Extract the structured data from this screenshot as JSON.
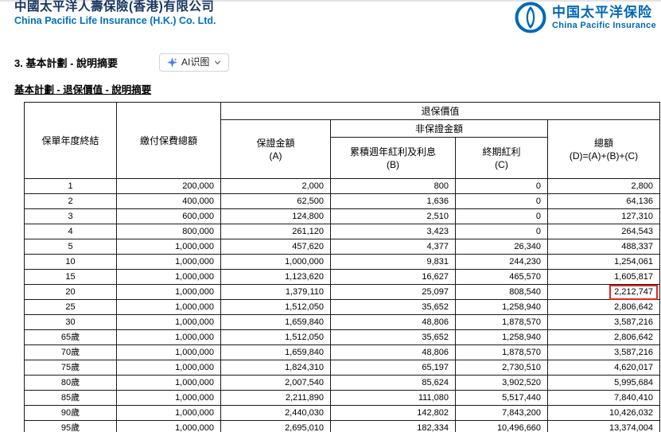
{
  "header": {
    "company_name_zh": "中國太平洋人壽保險(香港)有限公司",
    "company_name_en": "China Pacific Life Insurance (H.K.) Co. Ltd.",
    "logo_text_zh": "中国太平洋保险",
    "logo_text_en": "China Pacific Insurance",
    "brand_blue": "#0068b7",
    "brand_navy": "#16355f"
  },
  "section": {
    "title": "3. 基本計劃 - 說明摘要",
    "subtitle": "基本計劃 - 退保價值 - 說明摘要",
    "ai_button_label": "AI识图"
  },
  "table": {
    "headers": {
      "policy_year": "保單年度終結",
      "total_premium": "繳付保費總額",
      "surrender_value": "退保價值",
      "guaranteed": "保證金額\n(A)",
      "non_guaranteed": "非保證金額",
      "accumulated_dividend": "累積週年紅利及利息\n(B)",
      "terminal_dividend": "終期紅利\n(C)",
      "total": "總額\n(D)=(A)+(B)+(C)"
    },
    "rows": [
      [
        "1",
        "200,000",
        "2,000",
        "800",
        "0",
        "2,800"
      ],
      [
        "2",
        "400,000",
        "62,500",
        "1,636",
        "0",
        "64,136"
      ],
      [
        "3",
        "600,000",
        "124,800",
        "2,510",
        "0",
        "127,310"
      ],
      [
        "4",
        "800,000",
        "261,120",
        "3,423",
        "0",
        "264,543"
      ],
      [
        "5",
        "1,000,000",
        "457,620",
        "4,377",
        "26,340",
        "488,337"
      ],
      [
        "10",
        "1,000,000",
        "1,000,000",
        "9,831",
        "244,230",
        "1,254,061"
      ],
      [
        "15",
        "1,000,000",
        "1,123,620",
        "16,627",
        "465,570",
        "1,605,817"
      ],
      [
        "20",
        "1,000,000",
        "1,379,110",
        "25,097",
        "808,540",
        "2,212,747"
      ],
      [
        "25",
        "1,000,000",
        "1,512,050",
        "35,652",
        "1,258,940",
        "2,806,642"
      ],
      [
        "30",
        "1,000,000",
        "1,659,840",
        "48,806",
        "1,878,570",
        "3,587,216"
      ],
      [
        "65歲",
        "1,000,000",
        "1,512,050",
        "35,652",
        "1,258,940",
        "2,806,642"
      ],
      [
        "70歲",
        "1,000,000",
        "1,659,840",
        "48,806",
        "1,878,570",
        "3,587,216"
      ],
      [
        "75歲",
        "1,000,000",
        "1,824,310",
        "65,197",
        "2,730,510",
        "4,620,017"
      ],
      [
        "80歲",
        "1,000,000",
        "2,007,540",
        "85,624",
        "3,902,520",
        "5,995,684"
      ],
      [
        "85歲",
        "1,000,000",
        "2,211,890",
        "111,080",
        "5,517,440",
        "7,840,410"
      ],
      [
        "90歲",
        "1,000,000",
        "2,440,030",
        "142,802",
        "7,843,200",
        "10,426,032"
      ],
      [
        "95歲",
        "1,000,000",
        "2,695,010",
        "182,334",
        "10,496,660",
        "13,374,004"
      ]
    ],
    "highlight": {
      "row_index": 7,
      "col_index": 5,
      "color": "#e8261d"
    }
  }
}
